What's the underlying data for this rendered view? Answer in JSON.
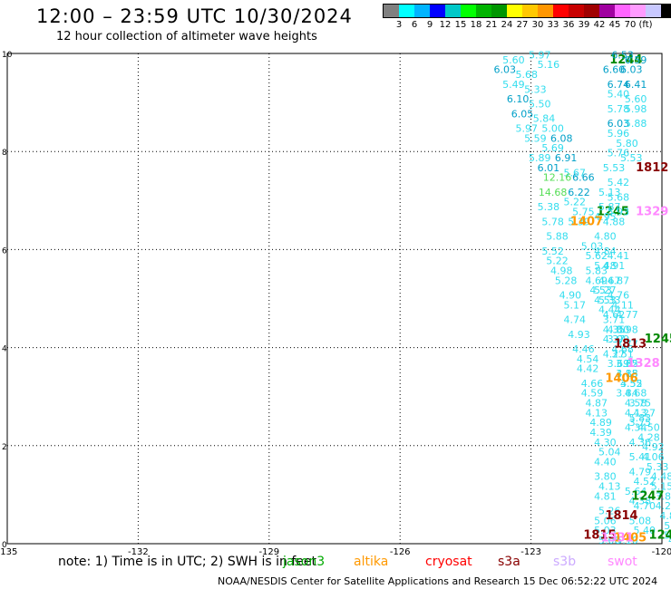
{
  "header": {
    "title": "12:00 – 23:59 UTC 10/30/2024",
    "subtitle": "12 hour collection of altimeter wave heights"
  },
  "legend": {
    "colors": [
      "#808080",
      "#00ffff",
      "#00b4ff",
      "#0000ff",
      "#00c8c8",
      "#00ff00",
      "#00b400",
      "#009600",
      "#ffff00",
      "#ffc800",
      "#ff9600",
      "#ff0000",
      "#c80000",
      "#a00000",
      "#a000a0",
      "#ff64ff",
      "#ff9bff",
      "#c8c8ff",
      "#000000"
    ],
    "labels": [
      "3",
      "6",
      "9",
      "12",
      "15",
      "18",
      "21",
      "24",
      "27",
      "30",
      "33",
      "36",
      "39",
      "42",
      "45",
      "70",
      "(ft)"
    ]
  },
  "axes": {
    "x_ticks": [
      "-135",
      "-132",
      "-129",
      "-126",
      "-123",
      "-120"
    ],
    "y_ticks": [
      "0",
      "2",
      "4",
      "6",
      "8",
      "10"
    ]
  },
  "chart_data": {
    "type": "scatter",
    "xlim": [
      -135,
      -120
    ],
    "ylim": [
      0,
      10
    ],
    "grid": true,
    "tracks": [
      {
        "name": "1244",
        "label_color": "#008800",
        "label_pos": [
          -121.2,
          9.8
        ],
        "points": [
          [
            -122.8,
            9.9,
            "5.97"
          ],
          [
            -123.4,
            9.8,
            "5.60"
          ],
          [
            -122.6,
            9.7,
            "5.16"
          ],
          [
            -123.6,
            9.6,
            "6.03"
          ],
          [
            -123.1,
            9.5,
            "5.68"
          ],
          [
            -123.4,
            9.3,
            "5.49"
          ],
          [
            -122.9,
            9.2,
            "5.33"
          ],
          [
            -123.3,
            9.0,
            "6.10"
          ],
          [
            -122.8,
            8.9,
            "5.50"
          ],
          [
            -123.2,
            8.7,
            "6.05"
          ],
          [
            -122.7,
            8.6,
            "5.84"
          ],
          [
            -123.1,
            8.4,
            "5.97"
          ],
          [
            -122.5,
            8.4,
            "5.00"
          ],
          [
            -122.9,
            8.2,
            "5.59"
          ],
          [
            -122.3,
            8.2,
            "6.08"
          ],
          [
            -122.5,
            8.0,
            "5.69"
          ],
          [
            -122.8,
            7.8,
            "5.89"
          ],
          [
            -122.2,
            7.8,
            "6.91"
          ],
          [
            -122.6,
            7.6,
            "6.01"
          ],
          [
            -122.0,
            7.5,
            "5.67"
          ],
          [
            -122.4,
            7.4,
            "12.16"
          ],
          [
            -121.8,
            7.4,
            "6.66"
          ],
          [
            -121.9,
            7.1,
            "6.22"
          ],
          [
            -122.5,
            7.1,
            "14.68"
          ],
          [
            -122.0,
            6.9,
            "5.22"
          ],
          [
            -122.6,
            6.8,
            "5.38"
          ],
          [
            -121.8,
            6.7,
            "5.75"
          ],
          [
            -122.5,
            6.5,
            "5.78"
          ],
          [
            -121.9,
            6.5,
            "5.39"
          ],
          [
            -122.4,
            6.2,
            "5.88"
          ],
          [
            -121.6,
            6.0,
            "5.03"
          ],
          [
            -122.5,
            5.9,
            "5.52"
          ],
          [
            -121.5,
            5.8,
            "5.62"
          ],
          [
            -122.4,
            5.7,
            "5.22"
          ],
          [
            -121.5,
            5.5,
            "5.83"
          ],
          [
            -122.3,
            5.5,
            "4.98"
          ],
          [
            -121.5,
            5.3,
            "4.69"
          ],
          [
            -122.2,
            5.3,
            "5.28"
          ],
          [
            -121.4,
            5.1,
            "4.53"
          ],
          [
            -122.1,
            5.0,
            "4.90"
          ],
          [
            -121.3,
            4.9,
            "4.53"
          ],
          [
            -122.0,
            4.8,
            "5.17"
          ],
          [
            -121.2,
            4.7,
            "4.44"
          ],
          [
            -122.0,
            4.5,
            "4.74"
          ],
          [
            -121.1,
            4.5,
            "3.71"
          ],
          [
            -121.0,
            4.3,
            "4.00"
          ],
          [
            -121.9,
            4.2,
            "4.93"
          ],
          [
            -121.0,
            4.1,
            "3.99"
          ],
          [
            -121.8,
            3.9,
            "4.46"
          ],
          [
            -120.9,
            3.9,
            "4.68"
          ],
          [
            -121.7,
            3.7,
            "4.54"
          ],
          [
            -120.8,
            3.6,
            "3.62"
          ],
          [
            -121.7,
            3.5,
            "4.42"
          ],
          [
            -120.8,
            3.4,
            "4.15"
          ],
          [
            -121.6,
            3.2,
            "4.66"
          ],
          [
            -120.7,
            3.2,
            "4.52"
          ],
          [
            -121.6,
            3.0,
            "4.59"
          ],
          [
            -120.8,
            3.0,
            "3.84"
          ],
          [
            -121.5,
            2.8,
            "4.87"
          ],
          [
            -120.6,
            2.8,
            "4.58"
          ],
          [
            -121.5,
            2.6,
            "4.13"
          ],
          [
            -120.6,
            2.6,
            "4.13"
          ],
          [
            -121.4,
            2.4,
            "4.89"
          ],
          [
            -120.5,
            2.5,
            "5.83"
          ],
          [
            -121.4,
            2.2,
            "4.39"
          ],
          [
            -120.6,
            2.3,
            "4.34"
          ],
          [
            -121.3,
            2.0,
            "4.30"
          ],
          [
            -120.5,
            2.0,
            "4.36"
          ],
          [
            -121.2,
            1.8,
            "5.04"
          ],
          [
            -120.5,
            1.7,
            "5.41"
          ],
          [
            -121.3,
            1.6,
            "4.40"
          ],
          [
            -120.5,
            1.4,
            "4.79"
          ],
          [
            -121.3,
            1.3,
            "3.80"
          ],
          [
            -120.4,
            1.2,
            "4.52"
          ],
          [
            -121.2,
            1.1,
            "4.13"
          ],
          [
            -120.6,
            1.0,
            "5.64"
          ],
          [
            -121.3,
            0.9,
            "4.81"
          ],
          [
            -120.5,
            0.8,
            "4.38"
          ],
          [
            -121.2,
            0.6,
            "5.26"
          ],
          [
            -120.4,
            0.7,
            "4.70"
          ],
          [
            -121.3,
            0.4,
            "5.06"
          ],
          [
            -120.5,
            0.4,
            "5.08"
          ],
          [
            -121.3,
            0.2,
            "5.03"
          ],
          [
            -120.4,
            0.2,
            "5.40"
          ],
          [
            -121.2,
            0.0,
            "5.08"
          ],
          [
            -120.8,
            0.0,
            "5.10"
          ]
        ]
      },
      {
        "name": "1245",
        "label_color": "#008800",
        "label_pos": [
          -121.5,
          6.7
        ],
        "points": []
      },
      {
        "name": "1247",
        "label_color": "#008800",
        "label_pos": [
          -120.7,
          0.9
        ],
        "points": [
          [
            -120.9,
            9.9,
            "6.53"
          ],
          [
            -120.6,
            9.8,
            "6.59"
          ],
          [
            -121.1,
            9.6,
            "6.60"
          ],
          [
            -120.7,
            9.6,
            "6.03"
          ],
          [
            -121.0,
            9.3,
            "6.74"
          ],
          [
            -120.6,
            9.3,
            "6.41"
          ],
          [
            -121.0,
            9.1,
            "5.40"
          ],
          [
            -120.6,
            9.0,
            "5.60"
          ],
          [
            -121.0,
            8.8,
            "5.78"
          ],
          [
            -120.6,
            8.8,
            "5.98"
          ],
          [
            -121.0,
            8.5,
            "6.03"
          ],
          [
            -120.6,
            8.5,
            "5.88"
          ],
          [
            -121.0,
            8.3,
            "5.96"
          ],
          [
            -120.8,
            8.1,
            "5.80"
          ],
          [
            -121.0,
            7.9,
            "5.76"
          ],
          [
            -120.7,
            7.8,
            "5.53"
          ],
          [
            -121.1,
            7.6,
            "5.53"
          ],
          [
            -121.0,
            7.3,
            "5.42"
          ],
          [
            -121.2,
            7.1,
            "5.13"
          ],
          [
            -121.0,
            7.0,
            "5.68"
          ],
          [
            -121.2,
            6.8,
            "5.87"
          ],
          [
            -121.0,
            6.7,
            "5.93"
          ],
          [
            -121.3,
            6.6,
            "4.95"
          ],
          [
            -121.1,
            6.5,
            "4.88"
          ],
          [
            -121.3,
            6.2,
            "4.80"
          ],
          [
            -121.3,
            5.9,
            "4.84"
          ],
          [
            -121.0,
            5.8,
            "4.41"
          ],
          [
            -121.3,
            5.6,
            "5.48"
          ],
          [
            -121.1,
            5.6,
            "4.91"
          ],
          [
            -121.2,
            5.3,
            "4.67"
          ],
          [
            -121.0,
            5.3,
            "4.87"
          ],
          [
            -121.3,
            5.1,
            "5.27"
          ],
          [
            -121.0,
            5.0,
            "4.76"
          ],
          [
            -121.2,
            4.9,
            "5.33"
          ],
          [
            -120.9,
            4.8,
            "4.11"
          ],
          [
            -121.1,
            4.6,
            "4.62"
          ],
          [
            -120.8,
            4.6,
            "4.77"
          ],
          [
            -121.1,
            4.3,
            "4.35"
          ],
          [
            -120.8,
            4.3,
            "3.98"
          ],
          [
            -121.1,
            4.1,
            "4.37"
          ],
          [
            -120.8,
            4.0,
            "3.77"
          ],
          [
            -121.1,
            3.8,
            "4.27"
          ],
          [
            -120.9,
            3.8,
            "3.51"
          ],
          [
            -121.0,
            3.6,
            "3.69"
          ],
          [
            -120.8,
            3.6,
            "3.35"
          ],
          [
            -120.8,
            3.4,
            "3.88"
          ],
          [
            -120.7,
            3.2,
            "3.55"
          ],
          [
            -120.6,
            3.0,
            "4.68"
          ],
          [
            -120.5,
            2.8,
            "3.75"
          ],
          [
            -120.4,
            2.6,
            "4.27"
          ],
          [
            -120.5,
            2.4,
            "3.75"
          ],
          [
            -120.3,
            2.3,
            "4.50"
          ],
          [
            -120.3,
            2.1,
            "4.28"
          ],
          [
            -120.2,
            1.9,
            "4.92"
          ],
          [
            -120.2,
            1.7,
            "4.06"
          ],
          [
            -120.1,
            1.5,
            "5.33"
          ],
          [
            -120.0,
            1.3,
            "4.48"
          ],
          [
            -120.0,
            1.1,
            "5.15"
          ],
          [
            -119.9,
            0.9,
            "3.83"
          ],
          [
            -119.9,
            0.7,
            "4.28"
          ],
          [
            -119.8,
            0.5,
            "4.86"
          ],
          [
            -119.7,
            0.3,
            "5.61"
          ],
          [
            -119.7,
            0.1,
            "5.12"
          ],
          [
            -119.6,
            0.0,
            "4.73"
          ]
        ]
      }
    ],
    "annotations": [
      {
        "text": "1812",
        "color": "#880000",
        "pos": [
          -120.6,
          7.6
        ]
      },
      {
        "text": "1329",
        "color": "#ff88ff",
        "pos": [
          -120.6,
          6.7
        ]
      },
      {
        "text": "1407",
        "color": "#ff9900",
        "pos": [
          -122.1,
          6.5
        ]
      },
      {
        "text": "1813",
        "color": "#880000",
        "pos": [
          -121.1,
          4.0
        ]
      },
      {
        "text": "1245",
        "color": "#008800",
        "pos": [
          -120.4,
          4.1
        ]
      },
      {
        "text": "1328",
        "color": "#ff88ff",
        "pos": [
          -120.8,
          3.6
        ]
      },
      {
        "text": "1406",
        "color": "#ff9900",
        "pos": [
          -121.3,
          3.3
        ]
      },
      {
        "text": "1814",
        "color": "#880000",
        "pos": [
          -121.3,
          0.5
        ]
      },
      {
        "text": "1815",
        "color": "#880000",
        "pos": [
          -121.8,
          0.1
        ]
      },
      {
        "text": "1405",
        "color": "#ff9900",
        "pos": [
          -121.1,
          0.05
        ]
      },
      {
        "text": "1331",
        "color": "#ff88ff",
        "pos": [
          -121.4,
          0.05
        ]
      },
      {
        "text": "124",
        "color": "#008800",
        "pos": [
          -120.3,
          0.1
        ]
      }
    ]
  },
  "bottom": {
    "note": "note: 1) Time is in UTC; 2) SWH is in feet",
    "satellites": [
      {
        "name": "jason3",
        "color": "#00aa00"
      },
      {
        "name": "altika",
        "color": "#ff9900"
      },
      {
        "name": "cryosat",
        "color": "#ff0000"
      },
      {
        "name": "s3a",
        "color": "#880000"
      },
      {
        "name": "s3b",
        "color": "#ccaaff"
      },
      {
        "name": "swot",
        "color": "#ff88ff"
      }
    ],
    "footer": "NOAA/NESDIS Center for Satellite Applications and Research    15 Dec 06:52:22 UTC 2024"
  }
}
